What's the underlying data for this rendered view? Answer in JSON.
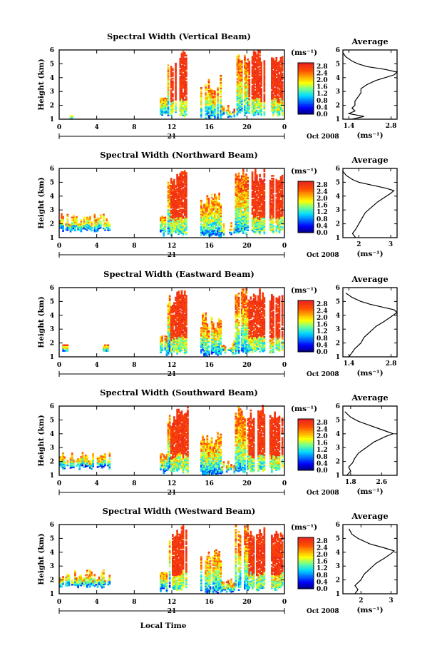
{
  "figure": {
    "xlabel": "Local Time",
    "date_label": "Oct 2008",
    "day_label": "21",
    "ylabel": "Height (km)",
    "unit_label": "(ms⁻¹)",
    "avg_title": "Average",
    "colorbar_ticks": [
      "2.8",
      "2.4",
      "2.0",
      "1.6",
      "1.2",
      "0.8",
      "0.4",
      "0.0"
    ]
  },
  "chart_data": [
    {
      "type": "heatmap",
      "title": "Spectral Width (Vertical Beam)",
      "xlabel": "Local Time",
      "ylabel": "Height (km)",
      "x_ticks": [
        "0",
        "4",
        "8",
        "12",
        "16",
        "20",
        "0"
      ],
      "xlim": [
        0,
        24
      ],
      "y_ticks": [
        "1",
        "2",
        "3",
        "4",
        "5",
        "6"
      ],
      "ylim": [
        1,
        6
      ],
      "colorbar": {
        "label": "(ms⁻¹)",
        "range": [
          0,
          3
        ],
        "ticks": [
          "2.8",
          "2.4",
          "2.0",
          "1.6",
          "1.2",
          "0.8",
          "0.4",
          "0.0"
        ]
      },
      "average_profile": {
        "title": "Average",
        "xlabel": "(ms⁻¹)",
        "x_ticks": [
          "1.4",
          "2.8"
        ],
        "xlim": [
          1.2,
          3.0
        ],
        "points": [
          [
            1.5,
            1.0
          ],
          [
            1.9,
            1.2
          ],
          [
            1.4,
            1.4
          ],
          [
            1.6,
            1.6
          ],
          [
            1.5,
            1.8
          ],
          [
            1.6,
            2.0
          ],
          [
            1.6,
            2.3
          ],
          [
            1.7,
            2.6
          ],
          [
            1.8,
            2.9
          ],
          [
            1.8,
            3.2
          ],
          [
            2.0,
            3.5
          ],
          [
            2.3,
            3.8
          ],
          [
            2.6,
            4.0
          ],
          [
            2.9,
            4.2
          ],
          [
            3.0,
            4.4
          ],
          [
            2.6,
            4.6
          ],
          [
            2.0,
            4.8
          ],
          [
            1.7,
            5.0
          ],
          [
            1.5,
            5.2
          ],
          [
            1.3,
            5.5
          ],
          [
            1.2,
            5.8
          ]
        ]
      }
    },
    {
      "type": "heatmap",
      "title": "Spectral Width (Northward Beam)",
      "xlabel": "Local Time",
      "ylabel": "Height (km)",
      "x_ticks": [
        "0",
        "4",
        "8",
        "12",
        "16",
        "20",
        "0"
      ],
      "xlim": [
        0,
        24
      ],
      "y_ticks": [
        "1",
        "2",
        "3",
        "4",
        "5",
        "6"
      ],
      "ylim": [
        1,
        6
      ],
      "colorbar": {
        "label": "(ms⁻¹)",
        "range": [
          0,
          3
        ],
        "ticks": [
          "2.8",
          "2.4",
          "2.0",
          "1.6",
          "1.2",
          "0.8",
          "0.4",
          "0.0"
        ]
      },
      "average_profile": {
        "title": "Average",
        "xlabel": "(ms⁻¹)",
        "x_ticks": [
          "2",
          "3"
        ],
        "xlim": [
          1.5,
          3.2
        ],
        "points": [
          [
            1.9,
            1.0
          ],
          [
            1.8,
            1.3
          ],
          [
            1.9,
            1.6
          ],
          [
            2.0,
            2.0
          ],
          [
            2.1,
            2.4
          ],
          [
            2.2,
            2.8
          ],
          [
            2.4,
            3.2
          ],
          [
            2.6,
            3.6
          ],
          [
            2.8,
            3.9
          ],
          [
            3.0,
            4.2
          ],
          [
            3.1,
            4.4
          ],
          [
            2.8,
            4.6
          ],
          [
            2.4,
            4.8
          ],
          [
            2.0,
            5.0
          ],
          [
            1.8,
            5.2
          ],
          [
            1.6,
            5.5
          ],
          [
            1.5,
            5.8
          ]
        ]
      }
    },
    {
      "type": "heatmap",
      "title": "Spectral Width (Eastward Beam)",
      "xlabel": "Local Time",
      "ylabel": "Height (km)",
      "x_ticks": [
        "0",
        "4",
        "8",
        "12",
        "16",
        "20",
        "0"
      ],
      "xlim": [
        0,
        24
      ],
      "y_ticks": [
        "1",
        "2",
        "3",
        "4",
        "5",
        "6"
      ],
      "ylim": [
        1,
        6
      ],
      "colorbar": {
        "label": "(ms⁻¹)",
        "range": [
          0,
          3
        ],
        "ticks": [
          "2.8",
          "2.4",
          "2.0",
          "1.6",
          "1.2",
          "0.8",
          "0.4",
          "0.0"
        ]
      },
      "average_profile": {
        "title": "Average",
        "xlabel": "(ms⁻¹)",
        "x_ticks": [
          "1.4",
          "2.8"
        ],
        "xlim": [
          1.2,
          3.0
        ],
        "points": [
          [
            1.4,
            1.0
          ],
          [
            1.5,
            1.3
          ],
          [
            1.6,
            1.6
          ],
          [
            1.8,
            2.0
          ],
          [
            1.9,
            2.4
          ],
          [
            2.1,
            2.8
          ],
          [
            2.3,
            3.2
          ],
          [
            2.6,
            3.6
          ],
          [
            2.8,
            3.9
          ],
          [
            3.0,
            4.2
          ],
          [
            2.9,
            4.4
          ],
          [
            2.5,
            4.6
          ],
          [
            2.1,
            4.8
          ],
          [
            1.8,
            5.0
          ],
          [
            1.5,
            5.3
          ],
          [
            1.3,
            5.6
          ]
        ]
      }
    },
    {
      "type": "heatmap",
      "title": "Spectral Width (Southward Beam)",
      "xlabel": "Local Time",
      "ylabel": "Height (km)",
      "x_ticks": [
        "0",
        "4",
        "8",
        "12",
        "16",
        "20",
        "0"
      ],
      "xlim": [
        0,
        24
      ],
      "y_ticks": [
        "1",
        "2",
        "3",
        "4",
        "5",
        "6"
      ],
      "ylim": [
        1,
        6
      ],
      "colorbar": {
        "label": "(ms⁻¹)",
        "range": [
          0,
          3
        ],
        "ticks": [
          "2.8",
          "2.4",
          "2.0",
          "1.6",
          "1.2",
          "0.8",
          "0.4",
          "0.0"
        ]
      },
      "average_profile": {
        "title": "Average",
        "xlabel": "(ms⁻¹)",
        "x_ticks": [
          "1.8",
          "2.6"
        ],
        "xlim": [
          1.6,
          3.0
        ],
        "points": [
          [
            1.7,
            1.0
          ],
          [
            1.8,
            1.3
          ],
          [
            1.75,
            1.6
          ],
          [
            1.85,
            1.9
          ],
          [
            1.9,
            2.2
          ],
          [
            2.0,
            2.6
          ],
          [
            2.2,
            3.0
          ],
          [
            2.4,
            3.4
          ],
          [
            2.7,
            3.8
          ],
          [
            2.9,
            4.0
          ],
          [
            2.6,
            4.3
          ],
          [
            2.3,
            4.6
          ],
          [
            2.0,
            4.9
          ],
          [
            1.8,
            5.2
          ],
          [
            1.65,
            5.6
          ]
        ]
      }
    },
    {
      "type": "heatmap",
      "title": "Spectral Width (Westward Beam)",
      "xlabel": "Local Time",
      "ylabel": "Height (km)",
      "x_ticks": [
        "0",
        "4",
        "8",
        "12",
        "16",
        "20",
        "0"
      ],
      "xlim": [
        0,
        24
      ],
      "y_ticks": [
        "1",
        "2",
        "3",
        "4",
        "5",
        "6"
      ],
      "ylim": [
        1,
        6
      ],
      "colorbar": {
        "label": "(ms⁻¹)",
        "range": [
          0,
          3
        ],
        "ticks": [
          "2.8",
          "2.4",
          "2.0",
          "1.6",
          "1.2",
          "0.8",
          "0.4",
          "0.0"
        ]
      },
      "average_profile": {
        "title": "Average",
        "xlabel": "(ms⁻¹)",
        "x_ticks": [
          "2",
          "3"
        ],
        "xlim": [
          1.4,
          3.2
        ],
        "points": [
          [
            1.8,
            1.0
          ],
          [
            1.9,
            1.3
          ],
          [
            1.8,
            1.6
          ],
          [
            2.0,
            2.0
          ],
          [
            2.1,
            2.4
          ],
          [
            2.3,
            2.8
          ],
          [
            2.5,
            3.2
          ],
          [
            2.8,
            3.6
          ],
          [
            3.0,
            3.9
          ],
          [
            3.1,
            4.1
          ],
          [
            2.8,
            4.3
          ],
          [
            2.3,
            4.6
          ],
          [
            1.9,
            5.0
          ],
          [
            1.7,
            5.3
          ],
          [
            1.6,
            5.7
          ]
        ]
      }
    }
  ]
}
